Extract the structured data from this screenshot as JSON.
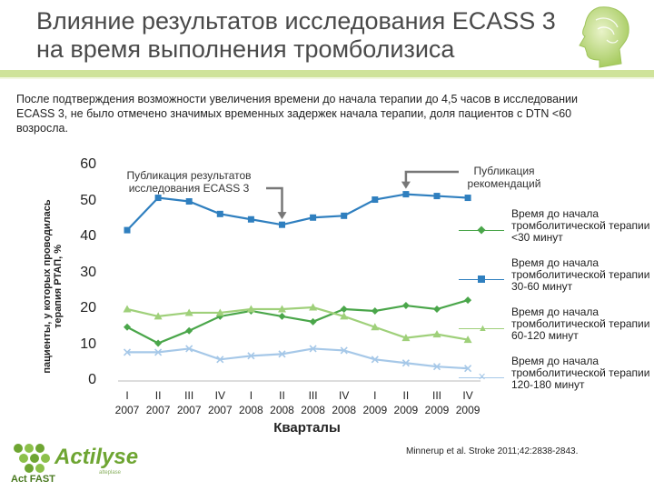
{
  "header": {
    "title_line1": "Влияние результатов исследования ECASS 3",
    "title_line2": "на время выполнения тромболизиса"
  },
  "intro_text": "После подтверждения возможности увеличения времени до начала терапии до 4,5 часов в исследовании ECASS 3, не было отмечено значимых временных задержек начала терапии, доля пациентов с DTN <60 возросла.",
  "chart_data": {
    "type": "line",
    "ylabel": "пациенты, у которых проводилась терапия РТАП, %",
    "xlabel": "Кварталы",
    "ylim": [
      0,
      60
    ],
    "yticks": [
      "0",
      "10",
      "20",
      "30",
      "40",
      "50",
      "60"
    ],
    "x_quarters": [
      "I",
      "II",
      "III",
      "IV",
      "I",
      "II",
      "III",
      "IV",
      "I",
      "II",
      "III",
      "IV"
    ],
    "x_years": [
      "2007",
      "2007",
      "2007",
      "2007",
      "2008",
      "2008",
      "2008",
      "2008",
      "2009",
      "2009",
      "2009",
      "2009"
    ],
    "series": [
      {
        "name": "Время до начала тромболитической терапии <30 минут",
        "color": "#4aa64a",
        "marker": "diamond",
        "values": [
          15,
          10.5,
          14,
          18,
          19.5,
          18,
          16.5,
          20,
          19.5,
          21,
          20,
          22.5
        ]
      },
      {
        "name": "Время до начала тромболитической терапии 30-60 минут",
        "color": "#2f7fbf",
        "marker": "square",
        "values": [
          42,
          51,
          50,
          46.5,
          45,
          43.5,
          45.5,
          46,
          50.5,
          52,
          51.5,
          51
        ]
      },
      {
        "name": "Время до начала тромболитической терапии 60-120 минут",
        "color": "#9fd07a",
        "marker": "triangle",
        "values": [
          20,
          18,
          19,
          19,
          20,
          20,
          20.5,
          18,
          15,
          12,
          13,
          11.5
        ]
      },
      {
        "name": "Время до начала тромболитической терапии 120-180 минут",
        "color": "#a6c8e8",
        "marker": "x",
        "values": [
          8,
          8,
          9,
          6,
          7,
          7.5,
          9,
          8.5,
          6,
          5,
          4,
          3.5
        ]
      }
    ],
    "annotations": [
      {
        "text": "Публикация результатов исследования ECASS 3",
        "arrow_to_index": 5
      },
      {
        "text": "Публикация рекомендаций",
        "arrow_to_index": 9
      }
    ],
    "grid": false,
    "legend_position": "right"
  },
  "citation": "Minnerup et al. Stroke 2011;42:2838-2843.",
  "logo": {
    "name": "Actilyse",
    "tagline": "Act FAST",
    "sub": "alteplase"
  },
  "colors": {
    "accent": "#cfe39a",
    "brand_green": "#6ea532"
  }
}
